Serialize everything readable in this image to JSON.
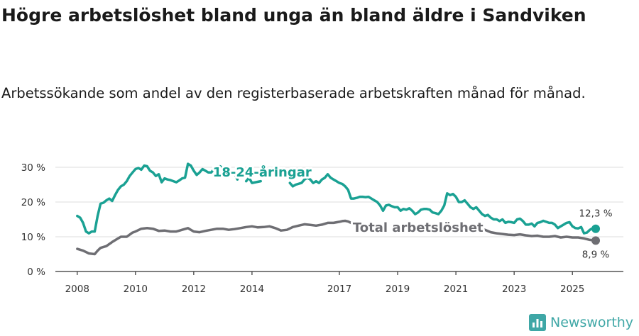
{
  "title": "Högre arbetslöshet bland unga än bland äldre i Sandviken",
  "subtitle": "Arbetssökande som andel av den registerbaserade arbetskraften månad för månad.",
  "brand": {
    "name": "Newsworthy",
    "color": "#3fa7a6"
  },
  "chart_data": {
    "type": "line",
    "ylim": [
      0,
      30
    ],
    "yticks": [
      0,
      10,
      20,
      30
    ],
    "ytick_labels": [
      "0 %",
      "10 %",
      "20 %",
      "30 %"
    ],
    "xlim": [
      2007.25,
      2026.75
    ],
    "xticks": [
      2008,
      2010,
      2012,
      2014,
      2017,
      2019,
      2021,
      2023,
      2025
    ],
    "xtick_labels": [
      "2008",
      "2010",
      "2012",
      "2014",
      "2017",
      "2019",
      "2021",
      "2023",
      "2025"
    ],
    "grid": true,
    "series": [
      {
        "name": "18-24-åringar",
        "color": "#1aa193",
        "end_label": "12,3 %",
        "points": [
          [
            2008.0,
            16
          ],
          [
            2008.1,
            15.5
          ],
          [
            2008.2,
            14
          ],
          [
            2008.3,
            11.5
          ],
          [
            2008.4,
            11
          ],
          [
            2008.5,
            11.5
          ],
          [
            2008.6,
            11.5
          ],
          [
            2008.7,
            16
          ],
          [
            2008.8,
            19.5
          ],
          [
            2008.9,
            19.8
          ],
          [
            2009.0,
            20.5
          ],
          [
            2009.1,
            21
          ],
          [
            2009.2,
            20.3
          ],
          [
            2009.3,
            22
          ],
          [
            2009.4,
            23.5
          ],
          [
            2009.5,
            24.5
          ],
          [
            2009.6,
            25
          ],
          [
            2009.7,
            26
          ],
          [
            2009.8,
            27.5
          ],
          [
            2009.9,
            28.5
          ],
          [
            2010.0,
            29.5
          ],
          [
            2010.1,
            29.8
          ],
          [
            2010.2,
            29.3
          ],
          [
            2010.3,
            30.5
          ],
          [
            2010.4,
            30.3
          ],
          [
            2010.5,
            29
          ],
          [
            2010.6,
            28.5
          ],
          [
            2010.7,
            27.5
          ],
          [
            2010.8,
            28
          ],
          [
            2010.9,
            25.7
          ],
          [
            2011.0,
            26.8
          ],
          [
            2011.1,
            26.5
          ],
          [
            2011.2,
            26.3
          ],
          [
            2011.3,
            26
          ],
          [
            2011.4,
            25.7
          ],
          [
            2011.5,
            26.2
          ],
          [
            2011.6,
            26.8
          ],
          [
            2011.7,
            27
          ],
          [
            2011.8,
            31
          ],
          [
            2011.9,
            30.5
          ],
          [
            2012.0,
            29
          ],
          [
            2012.1,
            27.8
          ],
          [
            2012.2,
            28.5
          ],
          [
            2012.3,
            29.5
          ],
          [
            2012.4,
            29
          ],
          [
            2012.5,
            28.5
          ],
          [
            2012.6,
            28.5
          ],
          [
            2012.7,
            29.5
          ],
          [
            2012.8,
            30
          ],
          [
            2012.9,
            30.3
          ],
          [
            2013.0,
            29.8
          ],
          [
            2013.1,
            28.5
          ],
          [
            2013.2,
            28.2
          ],
          [
            2013.3,
            28
          ],
          [
            2013.4,
            28.4
          ],
          [
            2013.5,
            26.5
          ],
          null,
          [
            2013.8,
            26
          ],
          [
            2013.9,
            27
          ],
          [
            2014.0,
            25.5
          ],
          [
            2014.3,
            26
          ],
          null,
          [
            2015.3,
            25.5
          ],
          [
            2015.4,
            24.5
          ],
          [
            2015.5,
            25
          ],
          [
            2015.7,
            25.5
          ],
          [
            2015.8,
            26.5
          ],
          [
            2015.9,
            27
          ],
          [
            2016.0,
            26.5
          ],
          [
            2016.1,
            25.5
          ],
          [
            2016.2,
            26
          ],
          [
            2016.3,
            25.5
          ],
          [
            2016.4,
            26.5
          ],
          [
            2016.5,
            27
          ],
          [
            2016.6,
            28
          ],
          [
            2016.7,
            27
          ],
          [
            2016.8,
            26.5
          ],
          [
            2016.9,
            26
          ],
          [
            2017.0,
            25.5
          ],
          [
            2017.1,
            25.2
          ],
          [
            2017.2,
            24.5
          ],
          [
            2017.3,
            23.5
          ],
          [
            2017.4,
            21
          ],
          [
            2017.5,
            21
          ],
          [
            2017.6,
            21.2
          ],
          [
            2017.7,
            21.5
          ],
          [
            2017.8,
            21.5
          ],
          [
            2017.9,
            21.4
          ],
          [
            2018.0,
            21.5
          ],
          [
            2018.1,
            21
          ],
          [
            2018.2,
            20.5
          ],
          [
            2018.3,
            20
          ],
          [
            2018.4,
            19
          ],
          [
            2018.5,
            17.5
          ],
          [
            2018.6,
            19
          ],
          [
            2018.7,
            19.2
          ],
          [
            2018.8,
            18.8
          ],
          [
            2018.9,
            18.5
          ],
          [
            2019.0,
            18.5
          ],
          [
            2019.1,
            17.5
          ],
          [
            2019.2,
            18
          ],
          [
            2019.3,
            17.8
          ],
          [
            2019.4,
            18.2
          ],
          [
            2019.5,
            17.5
          ],
          [
            2019.6,
            16.5
          ],
          [
            2019.7,
            17
          ],
          [
            2019.8,
            17.8
          ],
          [
            2019.9,
            18
          ],
          [
            2020.0,
            18
          ],
          [
            2020.1,
            17.8
          ],
          [
            2020.2,
            17
          ],
          [
            2020.3,
            16.8
          ],
          [
            2020.4,
            16.5
          ],
          [
            2020.5,
            17.5
          ],
          [
            2020.6,
            19
          ],
          [
            2020.7,
            22.5
          ],
          [
            2020.8,
            22
          ],
          [
            2020.9,
            22.3
          ],
          [
            2021.0,
            21.5
          ],
          [
            2021.1,
            20
          ],
          [
            2021.2,
            20
          ],
          [
            2021.3,
            20.5
          ],
          [
            2021.4,
            19.5
          ],
          [
            2021.5,
            18.5
          ],
          [
            2021.6,
            18
          ],
          [
            2021.7,
            18.5
          ],
          [
            2021.8,
            17.5
          ],
          [
            2021.9,
            16.5
          ],
          [
            2022.0,
            16
          ],
          [
            2022.1,
            16.3
          ],
          [
            2022.2,
            15.5
          ],
          [
            2022.3,
            15
          ],
          [
            2022.4,
            15
          ],
          [
            2022.5,
            14.5
          ],
          [
            2022.6,
            15
          ],
          [
            2022.7,
            14
          ],
          [
            2022.8,
            14.3
          ],
          [
            2022.9,
            14.2
          ],
          [
            2023.0,
            14
          ],
          [
            2023.1,
            15
          ],
          [
            2023.2,
            15.2
          ],
          [
            2023.3,
            14.5
          ],
          [
            2023.4,
            13.5
          ],
          [
            2023.5,
            13.5
          ],
          [
            2023.6,
            13.8
          ],
          [
            2023.7,
            13
          ],
          [
            2023.8,
            14
          ],
          [
            2023.9,
            14.2
          ],
          [
            2024.0,
            14.6
          ],
          [
            2024.1,
            14.3
          ],
          [
            2024.2,
            14
          ],
          [
            2024.3,
            14
          ],
          [
            2024.4,
            13.5
          ],
          [
            2024.5,
            12.5
          ],
          [
            2024.6,
            13
          ],
          [
            2024.7,
            13.5
          ],
          [
            2024.8,
            14
          ],
          [
            2024.9,
            14.2
          ],
          [
            2025.0,
            13
          ],
          [
            2025.1,
            12.5
          ],
          [
            2025.2,
            12.4
          ],
          [
            2025.3,
            12.8
          ],
          [
            2025.4,
            11
          ],
          [
            2025.5,
            11.2
          ],
          [
            2025.6,
            12
          ],
          [
            2025.7,
            12.5
          ],
          [
            2025.8,
            12.3
          ]
        ]
      },
      {
        "name": "Total arbetslöshet",
        "color": "#6e6e73",
        "end_label": "8,9 %",
        "points": [
          [
            2008.0,
            6.5
          ],
          [
            2008.2,
            6
          ],
          [
            2008.4,
            5.2
          ],
          [
            2008.6,
            5
          ],
          [
            2008.7,
            6
          ],
          [
            2008.8,
            6.8
          ],
          [
            2009.0,
            7.3
          ],
          [
            2009.2,
            8.5
          ],
          [
            2009.4,
            9.5
          ],
          [
            2009.5,
            10
          ],
          [
            2009.7,
            10
          ],
          [
            2009.9,
            11.2
          ],
          [
            2010.0,
            11.5
          ],
          [
            2010.2,
            12.3
          ],
          [
            2010.4,
            12.5
          ],
          [
            2010.6,
            12.3
          ],
          [
            2010.8,
            11.7
          ],
          [
            2011.0,
            11.8
          ],
          [
            2011.2,
            11.5
          ],
          [
            2011.4,
            11.5
          ],
          [
            2011.6,
            12
          ],
          [
            2011.8,
            12.5
          ],
          [
            2011.9,
            12
          ],
          [
            2012.0,
            11.5
          ],
          [
            2012.2,
            11.3
          ],
          [
            2012.4,
            11.7
          ],
          [
            2012.6,
            12
          ],
          [
            2012.8,
            12.3
          ],
          [
            2013.0,
            12.3
          ],
          [
            2013.2,
            12
          ],
          [
            2013.4,
            12.2
          ],
          [
            2013.6,
            12.5
          ],
          [
            2013.8,
            12.8
          ],
          [
            2014.0,
            13
          ],
          [
            2014.2,
            12.7
          ],
          [
            2014.4,
            12.8
          ],
          [
            2014.6,
            13
          ],
          [
            2014.8,
            12.5
          ],
          [
            2015.0,
            11.8
          ],
          [
            2015.2,
            12
          ],
          [
            2015.4,
            12.8
          ],
          [
            2015.6,
            13.2
          ],
          [
            2015.8,
            13.6
          ],
          [
            2016.0,
            13.4
          ],
          [
            2016.2,
            13.2
          ],
          [
            2016.4,
            13.5
          ],
          [
            2016.6,
            14
          ],
          [
            2016.8,
            14
          ],
          [
            2017.0,
            14.3
          ],
          [
            2017.1,
            14.5
          ],
          [
            2017.2,
            14.6
          ],
          [
            2017.3,
            14.4
          ],
          [
            2017.4,
            14
          ],
          null,
          [
            2022.0,
            12
          ],
          [
            2022.2,
            11.3
          ],
          [
            2022.4,
            11
          ],
          [
            2022.6,
            10.8
          ],
          [
            2022.8,
            10.6
          ],
          [
            2023.0,
            10.5
          ],
          [
            2023.2,
            10.7
          ],
          [
            2023.4,
            10.4
          ],
          [
            2023.6,
            10.2
          ],
          [
            2023.8,
            10.3
          ],
          [
            2024.0,
            10
          ],
          [
            2024.2,
            10
          ],
          [
            2024.4,
            10.2
          ],
          [
            2024.6,
            9.8
          ],
          [
            2024.8,
            10
          ],
          [
            2025.0,
            9.8
          ],
          [
            2025.2,
            9.8
          ],
          [
            2025.4,
            9.5
          ],
          [
            2025.6,
            9.1
          ],
          [
            2025.8,
            8.9
          ]
        ]
      }
    ]
  }
}
